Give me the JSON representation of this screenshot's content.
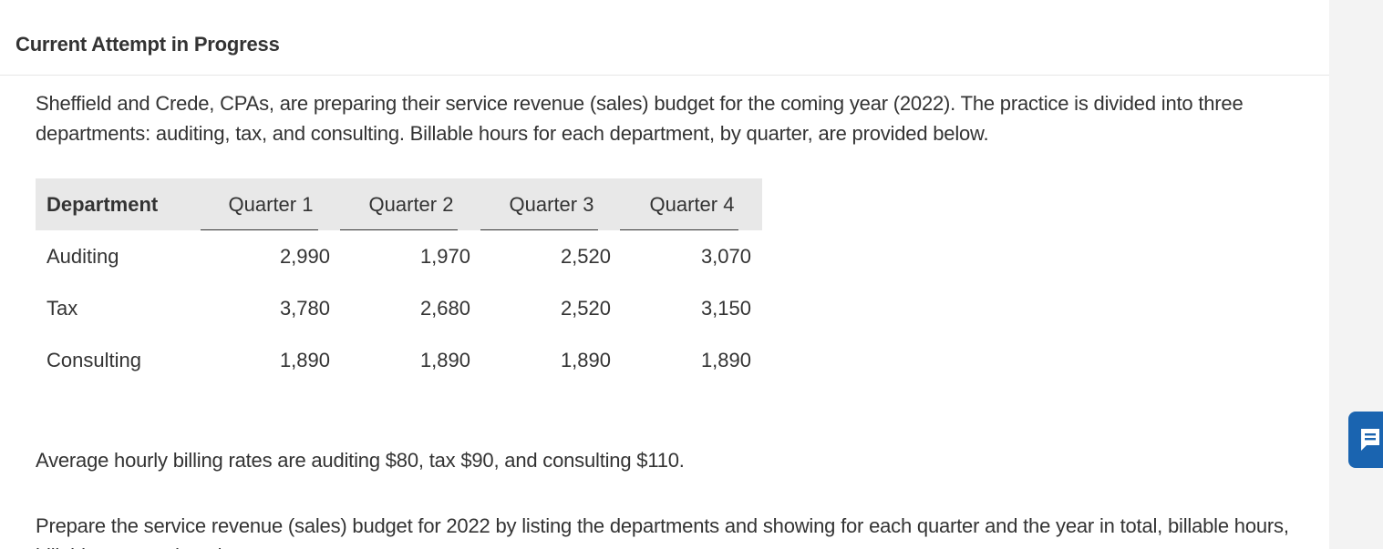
{
  "header": {
    "title": "Current Attempt in Progress"
  },
  "problem": {
    "intro": "Sheffield and Crede, CPAs, are preparing their service revenue (sales) budget for the coming year (2022). The practice is divided into three departments: auditing, tax, and consulting. Billable hours for each department, by quarter, are provided below.",
    "rates": "Average hourly billing rates are auditing $80, tax $90, and consulting $110.",
    "prepare": "Prepare the service revenue (sales) budget for 2022 by listing the departments and showing for each quarter and the year in total, billable hours, billable rate, and total revenue."
  },
  "table": {
    "headers": [
      "Department",
      "Quarter 1",
      "Quarter 2",
      "Quarter 3",
      "Quarter 4"
    ],
    "rows": [
      {
        "department": "Auditing",
        "values": [
          "2,990",
          "1,970",
          "2,520",
          "3,070"
        ]
      },
      {
        "department": "Tax",
        "values": [
          "3,780",
          "2,680",
          "2,520",
          "3,150"
        ]
      },
      {
        "department": "Consulting",
        "values": [
          "1,890",
          "1,890",
          "1,890",
          "1,890"
        ]
      }
    ]
  },
  "icons": {
    "feedback": "message-icon",
    "accent_color": "#1a64b0"
  }
}
